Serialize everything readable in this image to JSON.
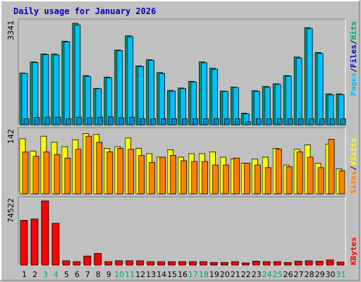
{
  "chart_data": [
    {
      "type": "bar",
      "panel": "top",
      "title": "Daily usage for January 2026",
      "ylabel_max": "3341",
      "legend": [
        "Pages",
        "/",
        "Files",
        "/",
        "Hits"
      ],
      "categories": [
        "1",
        "2",
        "3",
        "4",
        "5",
        "6",
        "7",
        "8",
        "9",
        "10",
        "11",
        "12",
        "13",
        "14",
        "15",
        "16",
        "17",
        "18",
        "19",
        "20",
        "21",
        "22",
        "23",
        "24",
        "25",
        "26",
        "27",
        "28",
        "29",
        "30",
        "31"
      ],
      "ylim": [
        0,
        3341
      ],
      "series": [
        {
          "name": "Hits",
          "values": [
            1700,
            2070,
            2330,
            2330,
            2750,
            3341,
            1620,
            1200,
            1570,
            2460,
            2930,
            1940,
            2140,
            1720,
            1130,
            1210,
            1430,
            2070,
            1860,
            1110,
            1240,
            380,
            1120,
            1260,
            1350,
            1620,
            2230,
            3200,
            2380,
            1020,
            1020
          ]
        },
        {
          "name": "Files",
          "values": [
            1690,
            2050,
            2310,
            2300,
            2730,
            3280,
            1590,
            1190,
            1550,
            2440,
            2900,
            1920,
            2120,
            1690,
            1110,
            1190,
            1410,
            2040,
            1830,
            1100,
            1230,
            360,
            1100,
            1240,
            1330,
            1600,
            2200,
            3160,
            2350,
            990,
            990
          ]
        },
        {
          "name": "Pages",
          "values": [
            200,
            240,
            250,
            250,
            200,
            250,
            230,
            250,
            260,
            230,
            250,
            200,
            200,
            200,
            200,
            200,
            200,
            200,
            200,
            200,
            200,
            100,
            200,
            200,
            200,
            200,
            200,
            200,
            200,
            200,
            200
          ]
        }
      ]
    },
    {
      "type": "bar",
      "panel": "middle",
      "ylabel_max": "142",
      "legend": [
        "Sites",
        "/",
        "Visits"
      ],
      "categories": [
        "1",
        "2",
        "3",
        "4",
        "5",
        "6",
        "7",
        "8",
        "9",
        "10",
        "11",
        "12",
        "13",
        "14",
        "15",
        "16",
        "17",
        "18",
        "19",
        "20",
        "21",
        "22",
        "23",
        "24",
        "25",
        "26",
        "27",
        "28",
        "29",
        "30",
        "31"
      ],
      "ylim": [
        0,
        142
      ],
      "series": [
        {
          "name": "Visits",
          "values": [
            126,
            98,
            132,
            118,
            108,
            124,
            138,
            136,
            104,
            108,
            128,
            104,
            92,
            84,
            101,
            84,
            92,
            92,
            96,
            84,
            80,
            70,
            80,
            84,
            104,
            66,
            102,
            112,
            70,
            114,
            57
          ]
        },
        {
          "name": "Sites",
          "values": [
            96,
            86,
            96,
            90,
            82,
            102,
            132,
            118,
            96,
            104,
            102,
            88,
            72,
            84,
            88,
            76,
            74,
            74,
            66,
            66,
            82,
            70,
            66,
            60,
            102,
            62,
            96,
            84,
            60,
            125,
            53
          ]
        }
      ]
    },
    {
      "type": "bar",
      "panel": "bottom",
      "ylabel_max": "74522",
      "legend": [
        "KBytes"
      ],
      "categories": [
        "1",
        "2",
        "3",
        "4",
        "5",
        "6",
        "7",
        "8",
        "9",
        "10",
        "11",
        "12",
        "13",
        "14",
        "15",
        "16",
        "17",
        "18",
        "19",
        "20",
        "21",
        "22",
        "23",
        "24",
        "25",
        "26",
        "27",
        "28",
        "29",
        "30",
        "31"
      ],
      "ylim": [
        0,
        74522
      ],
      "series": [
        {
          "name": "KBytes",
          "values": [
            52000,
            53500,
            74522,
            48500,
            5000,
            4000,
            10500,
            13500,
            4000,
            5000,
            5000,
            5000,
            4000,
            4000,
            4000,
            4000,
            4000,
            4000,
            3000,
            3000,
            4000,
            2500,
            4500,
            4000,
            4000,
            3000,
            4500,
            5000,
            4500,
            6000,
            3500
          ]
        }
      ]
    }
  ],
  "colors": {
    "pages": "#00c0ff",
    "pages_side": "#00a0d0",
    "files": "#00c0ff",
    "hits": "#00a080",
    "visits": "#ffff00",
    "sites": "#ff8000",
    "kbytes": "#ff0000",
    "kbytes_dark": "#800000",
    "weekend_label": "#00a080",
    "weekday_label": "#000000",
    "legend_pages": "#00c0ff",
    "legend_files": "#0000c0",
    "legend_hits": "#00a080",
    "legend_sites": "#ff8000",
    "legend_visits": "#ffff00",
    "legend_kbytes": "#ff0000"
  },
  "weekend_days": [
    3,
    4,
    10,
    11,
    17,
    18,
    24,
    25,
    31
  ]
}
